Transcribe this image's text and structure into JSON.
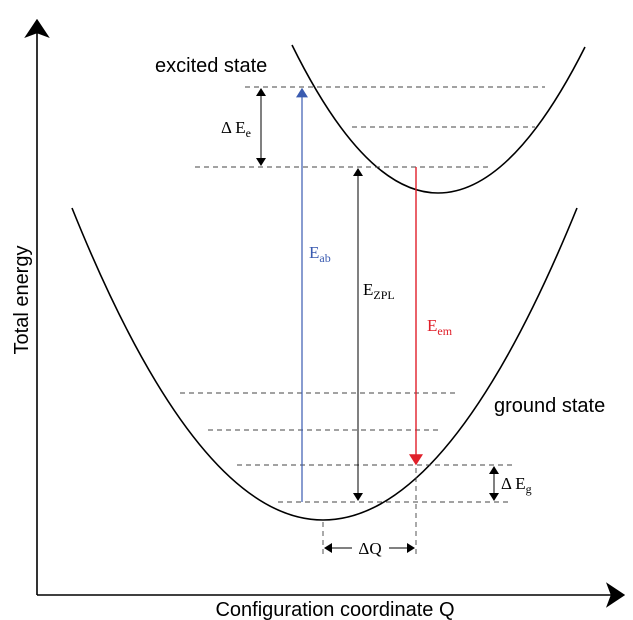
{
  "axes": {
    "y_label": "Total energy",
    "x_label": "Configuration coordinate Q"
  },
  "curves": {
    "excited": {
      "label": "excited state"
    },
    "ground": {
      "label": "ground state"
    }
  },
  "transitions": [
    {
      "symbol": "E",
      "subscript": "ab"
    },
    {
      "symbol": "E",
      "subscript": "ZPL"
    },
    {
      "symbol": "E",
      "subscript": "em"
    }
  ],
  "spacings": [
    {
      "symbol": "Δ E",
      "subscript": "e"
    },
    {
      "symbol": "Δ E",
      "subscript": "g"
    },
    {
      "symbol": "ΔQ"
    }
  ]
}
